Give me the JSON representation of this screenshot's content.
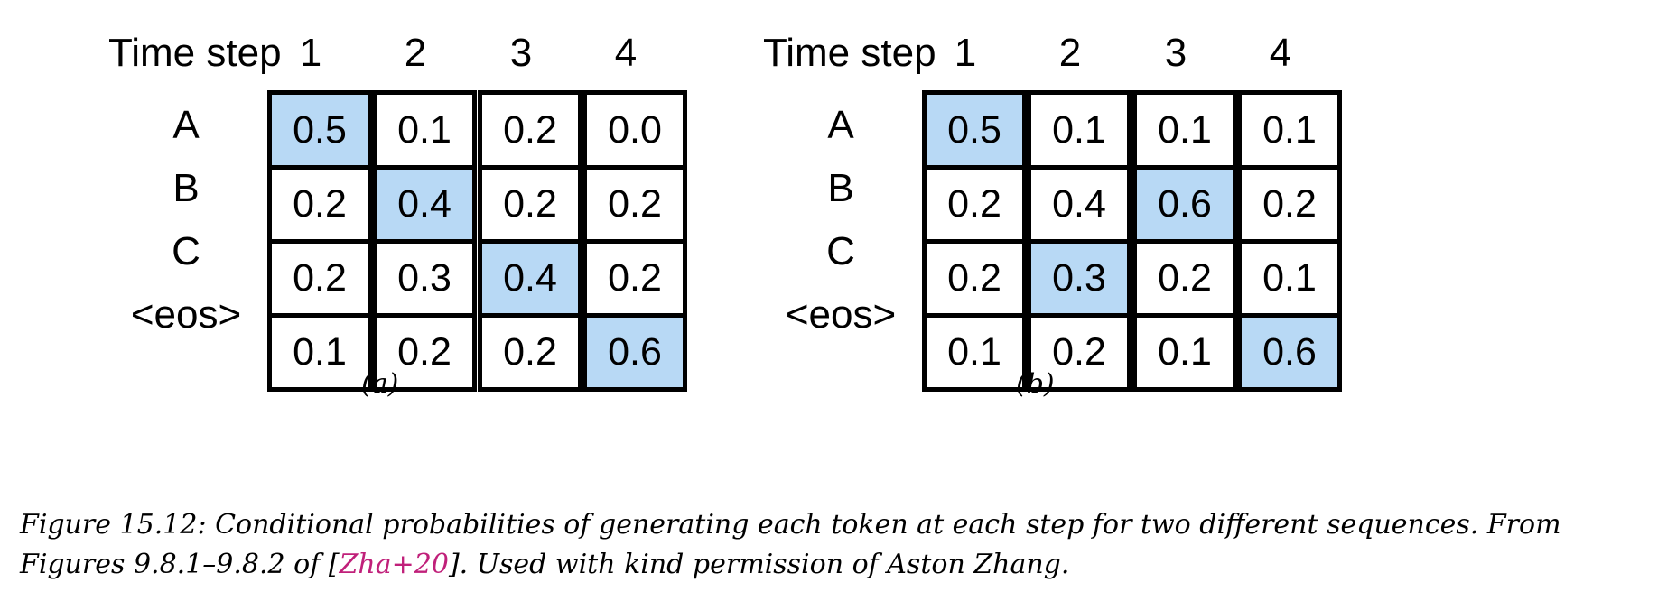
{
  "panels": [
    {
      "header": "Time step",
      "steps": [
        "1",
        "2",
        "3",
        "4"
      ],
      "tokens": [
        "A",
        "B",
        "C",
        "<eos>"
      ],
      "columns": [
        {
          "values": [
            "0.5",
            "0.2",
            "0.2",
            "0.1"
          ],
          "highlight": 0
        },
        {
          "values": [
            "0.1",
            "0.4",
            "0.3",
            "0.2"
          ],
          "highlight": 1
        },
        {
          "values": [
            "0.2",
            "0.2",
            "0.4",
            "0.2"
          ],
          "highlight": 2
        },
        {
          "values": [
            "0.0",
            "0.2",
            "0.2",
            "0.6"
          ],
          "highlight": 3
        }
      ],
      "label": "(a)"
    },
    {
      "header": "Time step",
      "steps": [
        "1",
        "2",
        "3",
        "4"
      ],
      "tokens": [
        "A",
        "B",
        "C",
        "<eos>"
      ],
      "columns": [
        {
          "values": [
            "0.5",
            "0.2",
            "0.2",
            "0.1"
          ],
          "highlight": 0
        },
        {
          "values": [
            "0.1",
            "0.4",
            "0.3",
            "0.2"
          ],
          "highlight": 2
        },
        {
          "values": [
            "0.1",
            "0.6",
            "0.2",
            "0.1"
          ],
          "highlight": 1
        },
        {
          "values": [
            "0.1",
            "0.2",
            "0.1",
            "0.6"
          ],
          "highlight": 3
        }
      ],
      "label": "(b)"
    }
  ],
  "highlight_color": "#b8d9f5",
  "caption": {
    "line1": "Figure 15.12: Conditional probabilities of generating each token at each step for two different sequences. From",
    "line2_pre": "Figures 9.8.1–9.8.2 of [",
    "ref": "Zha+20",
    "line2_post": "]. Used with kind permission of Aston Zhang."
  }
}
